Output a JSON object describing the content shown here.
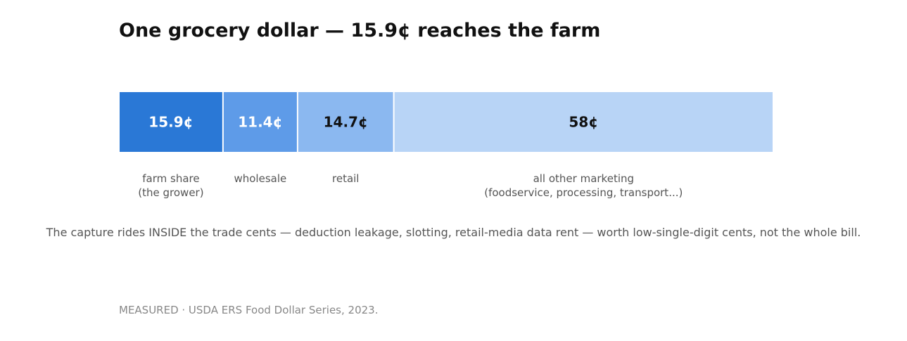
{
  "chart_data": {
    "type": "bar",
    "orientation": "horizontal-stacked",
    "title": "One grocery dollar — 15.9¢ reaches the farm",
    "unit": "¢",
    "total": 100,
    "segments": [
      {
        "value": 15.9,
        "value_label": "15.9¢",
        "category": [
          "farm share",
          "(the grower)"
        ],
        "color": "#2a78d6",
        "label_color": "#ffffff"
      },
      {
        "value": 11.4,
        "value_label": "11.4¢",
        "category": [
          "wholesale"
        ],
        "color": "#5e9be8",
        "label_color": "#ffffff"
      },
      {
        "value": 14.7,
        "value_label": "14.7¢",
        "category": [
          "retail"
        ],
        "color": "#8bb8f0",
        "label_color": "#111111"
      },
      {
        "value": 58,
        "value_label": "58¢",
        "category": [
          "all other marketing",
          "(foodservice, processing, transport...)"
        ],
        "color": "#b8d4f6",
        "label_color": "#111111"
      }
    ],
    "note": "The capture rides INSIDE the trade cents — deduction leakage, slotting, retail-media data rent — worth low-single-digit cents, not the whole bill.",
    "source": "MEASURED · USDA ERS Food Dollar Series, 2023."
  }
}
